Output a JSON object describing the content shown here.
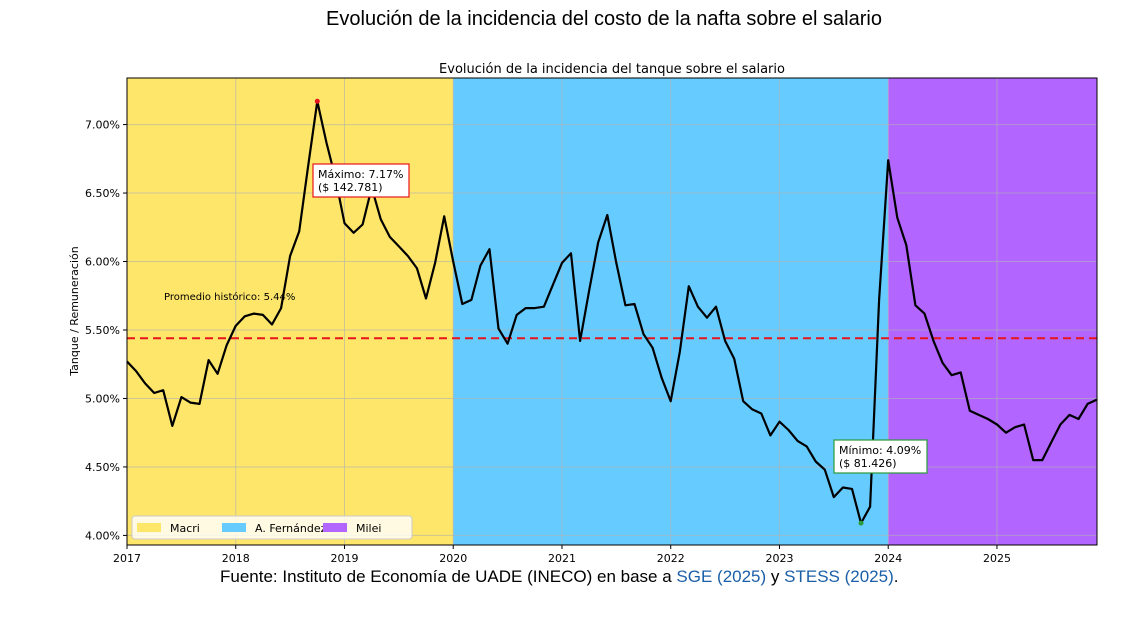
{
  "main_title": "Evolución de la incidencia del costo de la nafta sobre el salario",
  "source": {
    "prefix": "Fuente: Instituto de Economía de UADE (INECO) en base a",
    "link1": "SGE (2025)",
    "mid": "y",
    "link2": "STESS (2025)",
    "suffix": "."
  },
  "chart_data": {
    "type": "line",
    "title": "Evolución de la incidencia del tanque sobre el salario",
    "xlabel": "",
    "ylabel": "Tanque / Remuneración",
    "x_start": "2017-01",
    "frequency": "monthly",
    "xlim": [
      2017,
      2025.92
    ],
    "ylim": [
      3.93,
      7.34
    ],
    "xticks": [
      "2017",
      "2018",
      "2019",
      "2020",
      "2021",
      "2022",
      "2023",
      "2024",
      "2025"
    ],
    "yticks": [
      4.0,
      4.5,
      5.0,
      5.5,
      6.0,
      6.5,
      7.0
    ],
    "ytick_labels": [
      "4.00%",
      "4.50%",
      "5.00%",
      "5.50%",
      "6.00%",
      "6.50%",
      "7.00%"
    ],
    "grid": true,
    "values": [
      5.27,
      5.2,
      5.11,
      5.04,
      5.06,
      4.8,
      5.01,
      4.97,
      4.96,
      5.28,
      5.18,
      5.39,
      5.53,
      5.6,
      5.62,
      5.61,
      5.54,
      5.66,
      6.04,
      6.22,
      6.7,
      7.17,
      6.87,
      6.61,
      6.28,
      6.21,
      6.27,
      6.54,
      6.31,
      6.18,
      6.11,
      6.04,
      5.95,
      5.73,
      5.99,
      6.33,
      6.0,
      5.69,
      5.72,
      5.97,
      6.09,
      5.51,
      5.4,
      5.61,
      5.66,
      5.66,
      5.67,
      5.83,
      5.99,
      6.06,
      5.42,
      5.79,
      6.14,
      6.34,
      5.99,
      5.68,
      5.69,
      5.47,
      5.37,
      5.15,
      4.98,
      5.34,
      5.82,
      5.67,
      5.59,
      5.67,
      5.42,
      5.29,
      4.98,
      4.92,
      4.89,
      4.73,
      4.83,
      4.77,
      4.69,
      4.65,
      4.54,
      4.48,
      4.28,
      4.35,
      4.34,
      4.09,
      4.21,
      5.72,
      6.74,
      6.32,
      6.12,
      5.68,
      5.62,
      5.42,
      5.26,
      5.17,
      5.19,
      4.91,
      4.88,
      4.85,
      4.81,
      4.75,
      4.79,
      4.81,
      4.55,
      4.55,
      4.68,
      4.81,
      4.88,
      4.85,
      4.96,
      4.99
    ],
    "bands": [
      {
        "name": "Macri",
        "from": 2017,
        "to": 2020,
        "color": "#fde66a"
      },
      {
        "name": "A. Fernández",
        "from": 2020,
        "to": 2024,
        "color": "#66ccff"
      },
      {
        "name": "Milei",
        "from": 2024,
        "to": 2025.92,
        "color": "#b266ff"
      }
    ],
    "average": {
      "value": 5.44,
      "label": "Promedio histórico: 5.44%",
      "color": "#e8141c"
    },
    "max": {
      "value": 7.17,
      "line1": "Máximo: 7.17%",
      "line2": "($ 142.781)",
      "index": 21,
      "color": "#e8141c"
    },
    "min": {
      "value": 4.09,
      "line1": "Mínimo: 4.09%",
      "line2": "($ 81.426)",
      "index": 81,
      "color": "#2a9a3a"
    },
    "legend_position": "lower-left",
    "line_color": "#000000"
  }
}
